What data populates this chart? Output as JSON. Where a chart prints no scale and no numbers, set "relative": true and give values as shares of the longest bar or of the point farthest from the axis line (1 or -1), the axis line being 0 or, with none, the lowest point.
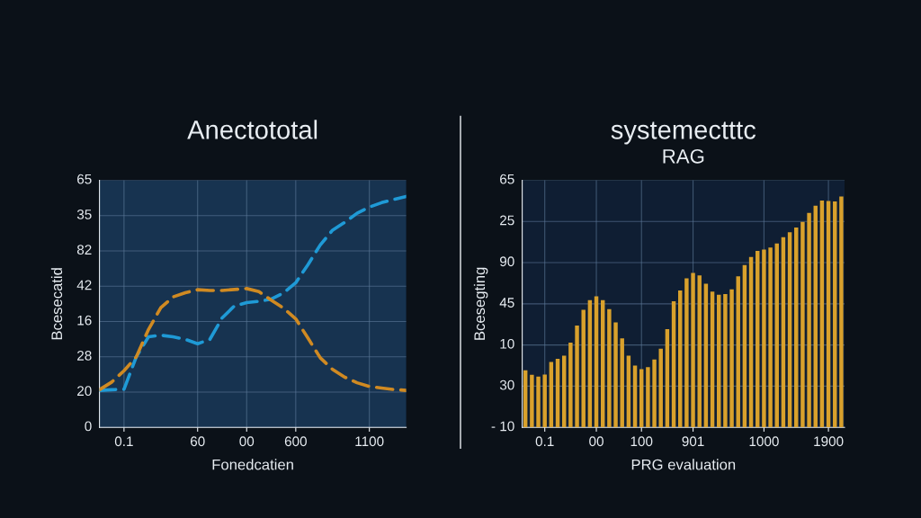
{
  "chart_data": [
    {
      "type": "line",
      "title": "Anectototal",
      "xlabel": "Fonedcatien",
      "ylabel": "Bcesecatid",
      "line_style": "dashed",
      "grid": true,
      "relative": true,
      "annotations": [
        "0",
        "20",
        "28",
        "16",
        "42",
        "82",
        "35",
        "65"
      ],
      "categories": [
        null,
        null,
        "0.1",
        null,
        null,
        null,
        null,
        null,
        "60",
        null,
        null,
        null,
        "00",
        null,
        null,
        null,
        "600",
        null,
        null,
        null,
        null,
        null,
        "1100",
        null,
        null,
        null
      ],
      "series": [
        {
          "color": "#1f9ad6",
          "values": [
            0.16,
            0.163,
            0.165,
            0.305,
            0.392,
            0.399,
            0.392,
            0.381,
            0.362,
            0.381,
            0.474,
            0.526,
            0.54,
            0.546,
            0.555,
            0.582,
            0.626,
            0.705,
            0.79,
            0.854,
            0.888,
            0.927,
            0.954,
            0.973,
            0.987,
            1
          ]
        },
        {
          "color": "#d08a22",
          "values": [
            0.163,
            0.196,
            0.245,
            0.305,
            0.424,
            0.518,
            0.565,
            0.583,
            0.596,
            0.593,
            0.593,
            0.597,
            0.601,
            0.588,
            0.551,
            0.516,
            0.47,
            0.386,
            0.301,
            0.251,
            0.217,
            0.193,
            0.177,
            0.17,
            0.164,
            0.16
          ]
        }
      ]
    },
    {
      "type": "bar",
      "title": "systemectttc",
      "subtitle": "RAG",
      "xlabel": "PRG evaluation",
      "ylabel": "Bcesegting",
      "grid": true,
      "relative": true,
      "annotations": [
        "- 10",
        "30",
        "10",
        "45",
        "90",
        "25",
        "65"
      ],
      "categories": [
        null,
        null,
        null,
        "0.1",
        null,
        null,
        null,
        null,
        null,
        null,
        null,
        "00",
        null,
        null,
        null,
        null,
        null,
        null,
        "100",
        null,
        null,
        null,
        null,
        null,
        null,
        null,
        "901",
        null,
        null,
        null,
        null,
        null,
        null,
        null,
        null,
        null,
        null,
        "1000",
        null,
        null,
        null,
        null,
        null,
        null,
        null,
        null,
        null,
        "1900",
        null,
        null
      ],
      "series": [
        {
          "color": "#d9a12c",
          "values": [
            0.247,
            0.228,
            0.22,
            0.229,
            0.283,
            0.297,
            0.31,
            0.367,
            0.441,
            0.509,
            0.551,
            0.567,
            0.551,
            0.512,
            0.454,
            0.385,
            0.31,
            0.268,
            0.252,
            0.261,
            0.294,
            0.341,
            0.425,
            0.546,
            0.593,
            0.645,
            0.669,
            0.658,
            0.622,
            0.588,
            0.574,
            0.577,
            0.598,
            0.654,
            0.703,
            0.738,
            0.764,
            0.77,
            0.779,
            0.796,
            0.823,
            0.845,
            0.865,
            0.89,
            0.929,
            0.96,
            0.982,
            0.98,
            0.978,
            1
          ]
        }
      ]
    }
  ]
}
